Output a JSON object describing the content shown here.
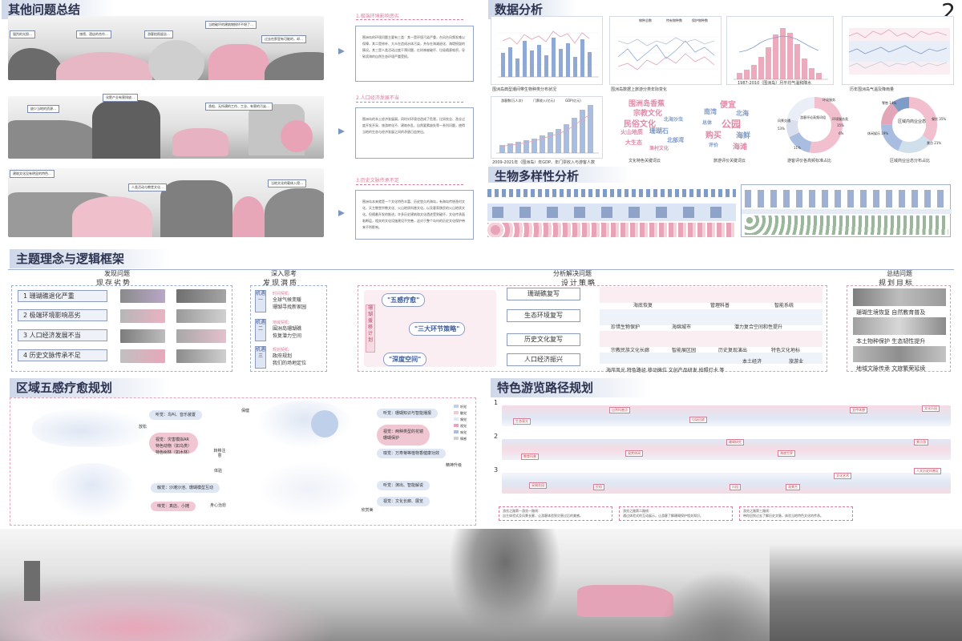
{
  "page_number": "2",
  "sections": {
    "other_issues": "其他问题总结",
    "data_analysis": "数据分析",
    "biodiversity": "生物多样性分析",
    "framework": "主题理念与逻辑框架",
    "five_senses": "区域五感疗愈规划",
    "route": "特色游览路径规划"
  },
  "issues": [
    {
      "callouts": [
        "强烈的光照…",
        "旅馆、酒店的合作…",
        "游客拍照留念…",
        "当地破坏的建筑物损坏不堪了…",
        "过去在那里有可能的，却…"
      ],
      "heading": "1.极端环境影响恶劣",
      "text": "围洲岛的环境问题主要有三类：其一是环境污染严重，台风台风频发难以保障，其二是修补、大众在造成水体污染，并存在海滩退化、海堤损毁的情况。其三是人类活动过度干预问题，红树林被破坏、垃圾随意堆积，导致滨海的自然生态环境严重受损。"
    },
    {
      "callouts": [
        "缺少当地的资源…",
        "化肥产业有害排放…",
        "渔船、无所谓的工作、工业、有害的污染…"
      ],
      "heading": "2.人口经济发展不当",
      "text": "围洲岛的本土经济发展弱，同时对环境也造成了危害，比如农业、渔业过度开发开采、旅游转化不、建筑杂乱、自然要素缺失等一系列问题，使得当地的生态与经济发展之间的矛盾日益突出。"
    },
    {
      "callouts": [
        "建筑文化没有明显的特色…",
        "人类活动与教堂文化…",
        "当地文化的载体入侵…"
      ],
      "heading": "3.历史文脉传承不足",
      "text": "围洲岛本来就是一个文化特色丰富、历史悠久的海岛，有海岛传统渔村文化，天主教堂宗教文化、火山地质科普文化。以及客家移民的火山地质文化。但随着开发的推进，许多历史建筑和文化遗迹受到破坏，文化传承面临断层，相关的文化设施建设不完善，这对于整个岛屿的历史文化保护带来不利影响。"
    }
  ],
  "data_panels": {
    "p1_caption": "围洲岛典型潮间带生物种类分布状况",
    "p2_caption": "围洲岛数据上旅游分类年际变化",
    "p3_caption": "1987-2010（围洲岛）月平均气温和降水",
    "p4_caption": "历年围洲岛气温及降雨量",
    "p5_caption": "2009-2021年（围洲岛）年GDP、年门票收入与游客人数",
    "p6_caption": "文化特色关键词云",
    "p7_caption": "旅游评价关键词云",
    "p8_caption": "游客评价各高频标准占比",
    "p9_caption": "区域商业业态分布占比",
    "p1_legend": [
      "物种总数",
      "特有物种数",
      "保护物种数"
    ],
    "p5_legend": [
      "游客数(万人次)",
      "门票收入(亿元)",
      "GDP(亿元)"
    ],
    "cloud1": [
      "围洲岛香蕉",
      "宗教文化",
      "北海沙虫",
      "民俗文化",
      "珊瑚石",
      "火山地质",
      "北部湾",
      "大生态",
      "渔村文化"
    ],
    "cloud2": [
      "便宜",
      "南湾",
      "北海",
      "公园",
      "购买",
      "海鲜",
      "评价",
      "海滩",
      "总体"
    ],
    "donut1_labels": [
      "游客评论高频词组",
      "风景交通",
      "环境服务",
      "环境服务类",
      "11%",
      "53%",
      "15%",
      "6%"
    ],
    "donut2_labels": [
      "区域内商业业态",
      "餐饮 35%",
      "景点 21%",
      "零售 14%",
      "休闲娱乐 19%"
    ]
  },
  "framework": {
    "col_heads": [
      "发现问题",
      "深入思考",
      "分析解决问题",
      "总结问题"
    ],
    "col_subs": [
      "现存劣势",
      "发现潜质",
      "设计策略",
      "规划目标"
    ],
    "issues": [
      "1 珊瑚礁退化严重",
      "2 极端环境影响恶劣",
      "3 人口经济发展不当",
      "4 历史文脉传承不足"
    ],
    "mechanisms": [
      {
        "tag": "机遇一",
        "title": "时间契机:",
        "lines": [
          "全球气候变暖",
          "珊瑚寻找新家园"
        ]
      },
      {
        "tag": "机遇二",
        "title": "地域契机:",
        "lines": [
          "围洲岛珊瑚礁",
          "恢复潜力空间"
        ]
      },
      {
        "tag": "机遇三",
        "title": "规划契机:",
        "lines": [
          "政府规划",
          "我们的场地定位"
        ]
      }
    ],
    "strategy_side": "珊瑚援移计划",
    "ribbons": [
      "\"五感疗愈\"",
      "\"三大环节策略\"",
      "\"深度空间\""
    ],
    "strategies": [
      "珊瑚礁复写",
      "生态环境复写",
      "历史文化复写",
      "人口经济振兴"
    ],
    "sketch_labels": [
      [
        "海底恢复",
        "管理科普",
        "智能系统"
      ],
      [
        "珍惜生物保护",
        "海绵城市",
        "潜力复合空间和性提升"
      ],
      [
        "宗教民族文化长廊",
        "智能展区园",
        "历史复现演出",
        "特色文化地标"
      ],
      [
        "海岸风光 特色路径 移动摊位 文创产品研发 拍照打卡 等",
        "本土经济",
        "旅游业"
      ]
    ],
    "goals": [
      "珊瑚生境恢复  自然教育普及",
      "本土物种保护  生态韧性提升",
      "地域文脉传承  文旅繁荣延续"
    ]
  },
  "five_senses": {
    "pills": [
      "听觉：鸟叫、音乐装置",
      "视觉：灾害模拟AR\n特色动物（如乌类）\n特色树林（如木林）",
      "触觉：沙滩沙池、珊瑚模型互动",
      "味觉：真店、小摊",
      "听觉：珊瑚知识与智能播报",
      "视觉：两种类型的花镜\n珊瑚保护",
      "嗅觉：万寿菊等植物香健康功效",
      "听觉：演出、智能解说",
      "视觉：文化长廊、展览"
    ],
    "side_tags": [
      "放松",
      "转移注意",
      "体验",
      "身心治愈",
      "保健",
      "精神升级",
      "欣赏美"
    ],
    "legend": [
      "听觉",
      "触觉",
      "嗅觉",
      "视觉",
      "味觉",
      "情感"
    ]
  },
  "route": {
    "nums": [
      "1",
      "2",
      "3"
    ],
    "tags": [
      "生态观光",
      "自然科普点",
      "垃圾回收",
      "宣传休憩",
      "文化乐园",
      "教育科普",
      "观赏休闲",
      "珊瑚研究",
      "海底世界",
      "景点游",
      "采摘花园",
      "民俗",
      "文化艺术",
      "人文历史科普区",
      "乐园",
      "观景台"
    ],
    "notes": [
      "游览之路第一游览—路线：\n自主体验式及风景长廊，让游客体验到灾害过后的美感。",
      "游览之路第二路线：\n通过体验式的互动展示，让游客了解珊瑚保护相关知识。",
      "游览之路第三路线：\n带你回到过去了解历史文脉，体验当地特色文化的传承。"
    ]
  },
  "colors": {
    "accent_blue": "#7f9cc8",
    "accent_pink": "#e3a6b8",
    "title_bg": "#cfd8ea"
  }
}
